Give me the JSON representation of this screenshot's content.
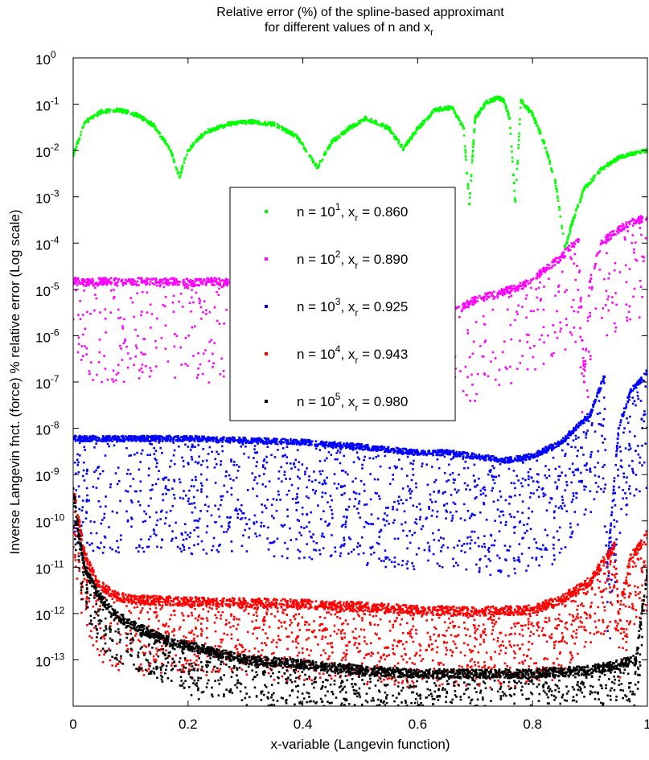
{
  "chart_data": {
    "type": "scatter",
    "title": {
      "line1": "Relative error (%) of the spline-based approximant",
      "line2": "for different values of n and x",
      "line2_subscript": "r"
    },
    "xlabel": "x-variable (Langevin function)",
    "ylabel": "Inverse Langevin fnct. (force) % relative error (Log scale)",
    "y_scale": "log",
    "xlim": [
      0,
      1
    ],
    "ylim_exp": [
      -14,
      0
    ],
    "x_ticks": [
      "0",
      "0.2",
      "0.4",
      "0.6",
      "0.8",
      "1"
    ],
    "x_tick_values": [
      0,
      0.2,
      0.4,
      0.6,
      0.8,
      1
    ],
    "y_ticks": [
      {
        "base": "10",
        "exp": "0"
      },
      {
        "base": "10",
        "exp": "-1"
      },
      {
        "base": "10",
        "exp": "-2"
      },
      {
        "base": "10",
        "exp": "-3"
      },
      {
        "base": "10",
        "exp": "-4"
      },
      {
        "base": "10",
        "exp": "-5"
      },
      {
        "base": "10",
        "exp": "-6"
      },
      {
        "base": "10",
        "exp": "-7"
      },
      {
        "base": "10",
        "exp": "-8"
      },
      {
        "base": "10",
        "exp": "-9"
      },
      {
        "base": "10",
        "exp": "-10"
      },
      {
        "base": "10",
        "exp": "-11"
      },
      {
        "base": "10",
        "exp": "-12"
      },
      {
        "base": "10",
        "exp": "-13"
      }
    ],
    "grid": false,
    "legend_position": "center",
    "series": [
      {
        "name": "n = 10^1, x_r = 0.860",
        "color": "#00ff00",
        "legend": {
          "pre": "n = 10",
          "exp": "1",
          "mid": ", x",
          "sub": "r",
          "post": " = 0.860"
        },
        "x": [
          0.0,
          0.02,
          0.05,
          0.08,
          0.11,
          0.14,
          0.17,
          0.185,
          0.2,
          0.23,
          0.27,
          0.31,
          0.35,
          0.39,
          0.425,
          0.45,
          0.48,
          0.51,
          0.55,
          0.575,
          0.6,
          0.63,
          0.66,
          0.68,
          0.69,
          0.7,
          0.72,
          0.74,
          0.75,
          0.76,
          0.77,
          0.78,
          0.8,
          0.82,
          0.84,
          0.857,
          0.87,
          0.89,
          0.92,
          0.95,
          0.98,
          1.0
        ],
        "y": [
          0.008,
          0.04,
          0.07,
          0.075,
          0.06,
          0.035,
          0.01,
          0.0027,
          0.01,
          0.025,
          0.037,
          0.042,
          0.037,
          0.02,
          0.0042,
          0.015,
          0.03,
          0.05,
          0.03,
          0.011,
          0.03,
          0.075,
          0.085,
          0.03,
          0.0007,
          0.05,
          0.11,
          0.14,
          0.12,
          0.05,
          0.0008,
          0.12,
          0.06,
          0.015,
          0.002,
          8e-05,
          0.0003,
          0.0015,
          0.004,
          0.007,
          0.009,
          0.01
        ]
      },
      {
        "name": "n = 10^2, x_r = 0.890",
        "color": "#ff00ff",
        "legend": {
          "pre": "n = 10",
          "exp": "2",
          "mid": ", x",
          "sub": "r",
          "post": " = 0.890"
        },
        "x": [
          0.0,
          0.03,
          0.06,
          0.09,
          0.12,
          0.15,
          0.18,
          0.21,
          0.24,
          0.27,
          0.58,
          0.62,
          0.66,
          0.7,
          0.74,
          0.78,
          0.82,
          0.85,
          0.88,
          0.89,
          0.9,
          0.92,
          0.95,
          0.98,
          1.0
        ],
        "y": [
          1.5e-05,
          1.4e-05,
          1.5e-05,
          1.4e-05,
          1.5e-05,
          1.4e-05,
          1.5e-05,
          1.4e-05,
          1.5e-05,
          1.4e-05,
          5e-06,
          4e-06,
          3e-06,
          6e-06,
          8e-06,
          1.2e-05,
          2.5e-05,
          5e-05,
          0.00012,
          1e-07,
          1.5e-05,
          0.0001,
          0.0002,
          0.0003,
          0.00035
        ]
      },
      {
        "name": "n = 10^3, x_r = 0.925",
        "color": "#0000ff",
        "legend": {
          "pre": "n = 10",
          "exp": "3",
          "mid": ", x",
          "sub": "r",
          "post": " = 0.925"
        },
        "x": [
          0.0,
          0.1,
          0.2,
          0.3,
          0.4,
          0.5,
          0.6,
          0.65,
          0.7,
          0.75,
          0.8,
          0.85,
          0.9,
          0.925,
          0.93,
          0.95,
          0.97,
          1.0
        ],
        "y": [
          6e-09,
          6e-09,
          6e-09,
          5.5e-09,
          5e-09,
          4e-09,
          3e-09,
          3e-09,
          2.5e-09,
          2e-09,
          2.5e-09,
          5e-09,
          2e-08,
          1.3e-07,
          1e-11,
          1e-08,
          6e-08,
          1.6e-07
        ]
      },
      {
        "name": "n = 10^4, x_r = 0.943",
        "color": "#ff0000",
        "legend": {
          "pre": "n = 10",
          "exp": "4",
          "mid": ", x",
          "sub": "r",
          "post": " = 0.943"
        },
        "x": [
          0.0,
          0.01,
          0.02,
          0.04,
          0.07,
          0.1,
          0.2,
          0.3,
          0.4,
          0.5,
          0.6,
          0.7,
          0.8,
          0.85,
          0.9,
          0.943,
          0.95,
          0.97,
          1.0
        ],
        "y": [
          5e-10,
          1e-10,
          2e-11,
          5e-12,
          2.5e-12,
          2e-12,
          1.8e-12,
          1.7e-12,
          1.6e-12,
          1.4e-12,
          1.2e-12,
          1.1e-12,
          1.2e-12,
          2e-12,
          5e-12,
          3e-11,
          1e-12,
          1.5e-11,
          5e-11
        ]
      },
      {
        "name": "n = 10^5, x_r = 0.980",
        "color": "#000000",
        "legend": {
          "pre": "n = 10",
          "exp": "5",
          "mid": ", x",
          "sub": "r",
          "post": " = 0.980"
        },
        "x": [
          0.0,
          0.01,
          0.02,
          0.04,
          0.07,
          0.1,
          0.15,
          0.2,
          0.3,
          0.4,
          0.5,
          0.6,
          0.7,
          0.8,
          0.9,
          0.95,
          0.98,
          0.99,
          1.0
        ],
        "y": [
          5e-10,
          5e-11,
          1e-11,
          3e-12,
          1e-12,
          6e-13,
          3e-13,
          2e-13,
          1e-13,
          8e-14,
          6e-14,
          5e-14,
          5e-14,
          5e-14,
          6e-14,
          8e-14,
          1e-13,
          1e-12,
          8e-12
        ]
      }
    ]
  }
}
